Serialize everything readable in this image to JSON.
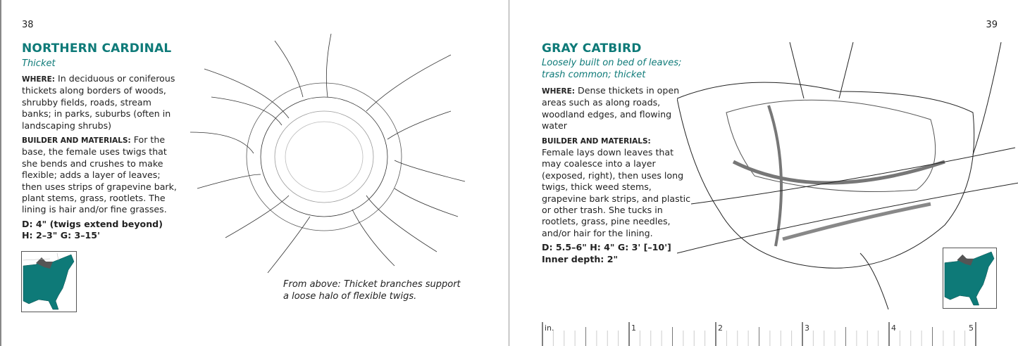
{
  "left_page": {
    "page_number": "38",
    "title": "NORTHERN CARDINAL",
    "subtitle": "Thicket",
    "where_label": "WHERE:",
    "where_text": "In deciduous or coniferous thickets along borders of woods, shrubby fields, roads, stream banks; in parks, suburbs (often in landscaping shrubs)",
    "builder_label": "BUILDER AND MATERIALS:",
    "builder_text": "For the base, the female uses twigs that she bends and crushes to make flexible; adds a layer of leaves; then uses strips of grapevine bark, plant stems, grass, rootlets. The lining is hair and/or fine grasses.",
    "dims_line1": "D:  4\" (twigs extend beyond)",
    "dims_line2": "H: 2–3\"    G: 3–15'",
    "caption_line1": "From above: Thicket branches support",
    "caption_line2": "a loose halo of flexible twigs.",
    "illustration": "nest-from-above-drawing",
    "map": "eastern-us-range-map"
  },
  "right_page": {
    "page_number": "39",
    "title": "GRAY CATBIRD",
    "subtitle_line1": "Loosely built on bed of leaves;",
    "subtitle_line2": "trash common; thicket",
    "where_label": "WHERE:",
    "where_text": "Dense thickets in open areas such as along roads, woodland edges, and flowing water",
    "builder_label": "BUILDER AND MATERIALS:",
    "builder_text": "Female lays down leaves that may coalesce into a layer (exposed, right), then uses long twigs, thick weed stems, grapevine bark strips, and plastic or other trash. She tucks in rootlets, grass, pine needles, and/or hair for the lining.",
    "dims_line1": "D:  5.5–6\"    H: 4\"    G: 3' [–10']",
    "dims_line2": "Inner depth: 2\"",
    "illustration": "cup-nest-side-drawing",
    "map": "eastern-us-range-map",
    "ruler": {
      "unit": "in.",
      "labels": [
        "1",
        "2",
        "3",
        "4",
        "5"
      ]
    }
  },
  "colors": {
    "accent": "#0e7a78",
    "map_range": "#0e7a78",
    "lakes": "#555555"
  }
}
